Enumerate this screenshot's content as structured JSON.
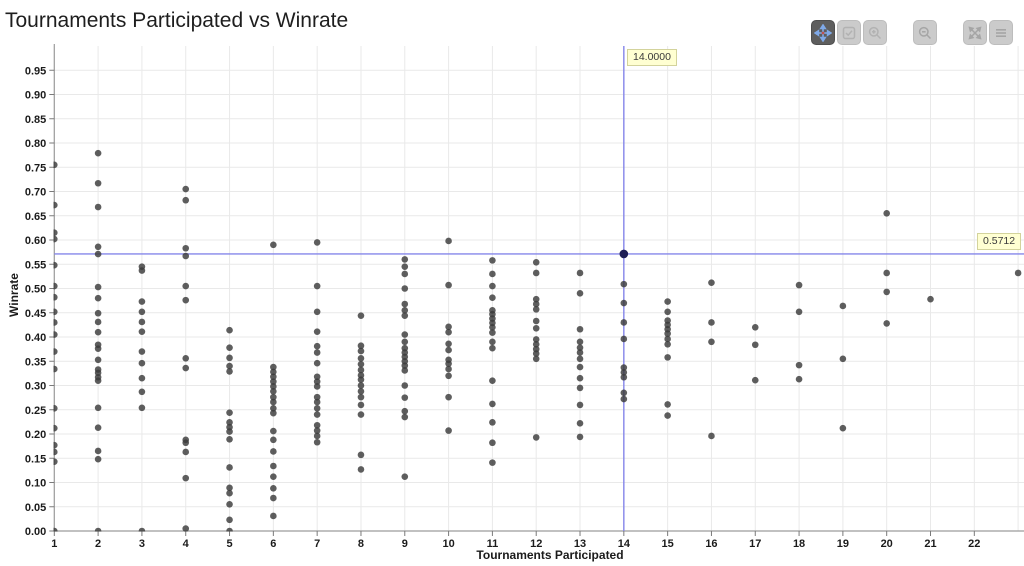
{
  "title": "Tournaments Participated vs Winrate",
  "toolbar": {
    "buttons": [
      {
        "name": "pan",
        "icon": "move-icon",
        "active": true
      },
      {
        "name": "box-select",
        "icon": "box-select-icon",
        "active": false
      },
      {
        "name": "zoom-in",
        "icon": "zoom-in-icon",
        "active": false
      },
      {
        "name": "zoom-out",
        "icon": "zoom-out-icon",
        "active": false
      },
      {
        "name": "fit-view",
        "icon": "fit-screen-icon",
        "active": false
      },
      {
        "name": "menu",
        "icon": "menu-icon",
        "active": false
      }
    ]
  },
  "chart_data": {
    "type": "scatter",
    "title": "Tournaments Participated vs Winrate",
    "xlabel": "Tournaments Participated",
    "ylabel": "Winrate",
    "xlim": [
      1,
      23.2
    ],
    "ylim": [
      0,
      1.0
    ],
    "grid": true,
    "x_tick_labels": [
      "1",
      "2",
      "3",
      "4",
      "5",
      "6",
      "7",
      "8",
      "9",
      "10",
      "11",
      "12",
      "13",
      "14",
      "15",
      "16",
      "17",
      "18",
      "19",
      "20",
      "21",
      "22"
    ],
    "y_tick_labels": [
      "0.00",
      "0.05",
      "0.10",
      "0.15",
      "0.20",
      "0.25",
      "0.30",
      "0.35",
      "0.40",
      "0.45",
      "0.50",
      "0.55",
      "0.60",
      "0.65",
      "0.70",
      "0.75",
      "0.80",
      "0.85",
      "0.90",
      "0.95"
    ],
    "point_color": "#3b3b3b",
    "colors": {
      "grid": "#e9e9e9",
      "axis": "#9c9c9c",
      "tick": "#7a7a7a",
      "crosshair": "#8586ea",
      "highlight_point": "#1d1d55",
      "label_bg": "#ffffd2"
    },
    "crosshair": {
      "x": 14,
      "y": 0.5712,
      "x_label": "14.0000",
      "y_label": "0.5712"
    },
    "highlight_point": {
      "x": 14,
      "y": 0.5712
    },
    "points": [
      [
        1,
        0.755
      ],
      [
        1,
        0.672
      ],
      [
        1,
        0.615
      ],
      [
        1,
        0.602
      ],
      [
        1,
        0.548
      ],
      [
        1,
        0.505
      ],
      [
        1,
        0.482
      ],
      [
        1,
        0.452
      ],
      [
        1,
        0.43
      ],
      [
        1,
        0.405
      ],
      [
        1,
        0.37
      ],
      [
        1,
        0.334
      ],
      [
        1,
        0.253
      ],
      [
        1,
        0.212
      ],
      [
        1,
        0.177
      ],
      [
        1,
        0.163
      ],
      [
        1,
        0.143
      ],
      [
        1,
        0.0
      ],
      [
        2,
        0.779
      ],
      [
        2,
        0.717
      ],
      [
        2,
        0.668
      ],
      [
        2,
        0.586
      ],
      [
        2,
        0.571
      ],
      [
        2,
        0.503
      ],
      [
        2,
        0.48
      ],
      [
        2,
        0.449
      ],
      [
        2,
        0.431
      ],
      [
        2,
        0.41
      ],
      [
        2,
        0.384
      ],
      [
        2,
        0.376
      ],
      [
        2,
        0.353
      ],
      [
        2,
        0.333
      ],
      [
        2,
        0.326
      ],
      [
        2,
        0.317
      ],
      [
        2,
        0.31
      ],
      [
        2,
        0.254
      ],
      [
        2,
        0.213
      ],
      [
        2,
        0.165
      ],
      [
        2,
        0.148
      ],
      [
        2,
        0.0
      ],
      [
        3,
        0.545
      ],
      [
        3,
        0.537
      ],
      [
        3,
        0.473
      ],
      [
        3,
        0.452
      ],
      [
        3,
        0.431
      ],
      [
        3,
        0.411
      ],
      [
        3,
        0.37
      ],
      [
        3,
        0.346
      ],
      [
        3,
        0.315
      ],
      [
        3,
        0.287
      ],
      [
        3,
        0.254
      ],
      [
        3,
        0.0
      ],
      [
        4,
        0.705
      ],
      [
        4,
        0.682
      ],
      [
        4,
        0.583
      ],
      [
        4,
        0.567
      ],
      [
        4,
        0.505
      ],
      [
        4,
        0.476
      ],
      [
        4,
        0.356
      ],
      [
        4,
        0.336
      ],
      [
        4,
        0.188
      ],
      [
        4,
        0.182
      ],
      [
        4,
        0.163
      ],
      [
        4,
        0.109
      ],
      [
        4,
        0.005
      ],
      [
        5,
        0.414
      ],
      [
        5,
        0.378
      ],
      [
        5,
        0.357
      ],
      [
        5,
        0.34
      ],
      [
        5,
        0.329
      ],
      [
        5,
        0.244
      ],
      [
        5,
        0.224
      ],
      [
        5,
        0.214
      ],
      [
        5,
        0.205
      ],
      [
        5,
        0.189
      ],
      [
        5,
        0.131
      ],
      [
        5,
        0.089
      ],
      [
        5,
        0.078
      ],
      [
        5,
        0.055
      ],
      [
        5,
        0.023
      ],
      [
        5,
        0.0
      ],
      [
        6,
        0.59
      ],
      [
        6,
        0.338
      ],
      [
        6,
        0.328
      ],
      [
        6,
        0.318
      ],
      [
        6,
        0.308
      ],
      [
        6,
        0.298
      ],
      [
        6,
        0.288
      ],
      [
        6,
        0.276
      ],
      [
        6,
        0.266
      ],
      [
        6,
        0.253
      ],
      [
        6,
        0.243
      ],
      [
        6,
        0.206
      ],
      [
        6,
        0.188
      ],
      [
        6,
        0.164
      ],
      [
        6,
        0.134
      ],
      [
        6,
        0.112
      ],
      [
        6,
        0.088
      ],
      [
        6,
        0.068
      ],
      [
        6,
        0.031
      ],
      [
        7,
        0.595
      ],
      [
        7,
        0.505
      ],
      [
        7,
        0.452
      ],
      [
        7,
        0.411
      ],
      [
        7,
        0.381
      ],
      [
        7,
        0.368
      ],
      [
        7,
        0.346
      ],
      [
        7,
        0.318
      ],
      [
        7,
        0.308
      ],
      [
        7,
        0.298
      ],
      [
        7,
        0.276
      ],
      [
        7,
        0.266
      ],
      [
        7,
        0.253
      ],
      [
        7,
        0.24
      ],
      [
        7,
        0.218
      ],
      [
        7,
        0.207
      ],
      [
        7,
        0.196
      ],
      [
        7,
        0.183
      ],
      [
        8,
        0.444
      ],
      [
        8,
        0.382
      ],
      [
        8,
        0.371
      ],
      [
        8,
        0.356
      ],
      [
        8,
        0.344
      ],
      [
        8,
        0.332
      ],
      [
        8,
        0.321
      ],
      [
        8,
        0.312
      ],
      [
        8,
        0.3
      ],
      [
        8,
        0.288
      ],
      [
        8,
        0.276
      ],
      [
        8,
        0.26
      ],
      [
        8,
        0.24
      ],
      [
        8,
        0.157
      ],
      [
        8,
        0.127
      ],
      [
        9,
        0.56
      ],
      [
        9,
        0.545
      ],
      [
        9,
        0.53
      ],
      [
        9,
        0.5
      ],
      [
        9,
        0.468
      ],
      [
        9,
        0.455
      ],
      [
        9,
        0.444
      ],
      [
        9,
        0.405
      ],
      [
        9,
        0.39
      ],
      [
        9,
        0.377
      ],
      [
        9,
        0.368
      ],
      [
        9,
        0.359
      ],
      [
        9,
        0.35
      ],
      [
        9,
        0.341
      ],
      [
        9,
        0.331
      ],
      [
        9,
        0.3
      ],
      [
        9,
        0.275
      ],
      [
        9,
        0.247
      ],
      [
        9,
        0.235
      ],
      [
        9,
        0.112
      ],
      [
        10,
        0.598
      ],
      [
        10,
        0.507
      ],
      [
        10,
        0.421
      ],
      [
        10,
        0.41
      ],
      [
        10,
        0.386
      ],
      [
        10,
        0.373
      ],
      [
        10,
        0.353
      ],
      [
        10,
        0.345
      ],
      [
        10,
        0.334
      ],
      [
        10,
        0.32
      ],
      [
        10,
        0.276
      ],
      [
        10,
        0.207
      ],
      [
        11,
        0.558
      ],
      [
        11,
        0.53
      ],
      [
        11,
        0.505
      ],
      [
        11,
        0.481
      ],
      [
        11,
        0.455
      ],
      [
        11,
        0.447
      ],
      [
        11,
        0.438
      ],
      [
        11,
        0.429
      ],
      [
        11,
        0.42
      ],
      [
        11,
        0.409
      ],
      [
        11,
        0.39
      ],
      [
        11,
        0.377
      ],
      [
        11,
        0.31
      ],
      [
        11,
        0.262
      ],
      [
        11,
        0.224
      ],
      [
        11,
        0.182
      ],
      [
        11,
        0.141
      ],
      [
        12,
        0.554
      ],
      [
        12,
        0.532
      ],
      [
        12,
        0.478
      ],
      [
        12,
        0.468
      ],
      [
        12,
        0.457
      ],
      [
        12,
        0.433
      ],
      [
        12,
        0.418
      ],
      [
        12,
        0.395
      ],
      [
        12,
        0.385
      ],
      [
        12,
        0.375
      ],
      [
        12,
        0.366
      ],
      [
        12,
        0.355
      ],
      [
        12,
        0.193
      ],
      [
        13,
        0.532
      ],
      [
        13,
        0.49
      ],
      [
        13,
        0.416
      ],
      [
        13,
        0.39
      ],
      [
        13,
        0.378
      ],
      [
        13,
        0.368
      ],
      [
        13,
        0.355
      ],
      [
        13,
        0.338
      ],
      [
        13,
        0.315
      ],
      [
        13,
        0.295
      ],
      [
        13,
        0.26
      ],
      [
        13,
        0.222
      ],
      [
        13,
        0.194
      ],
      [
        14,
        0.509
      ],
      [
        14,
        0.47
      ],
      [
        14,
        0.43
      ],
      [
        14,
        0.396
      ],
      [
        14,
        0.337
      ],
      [
        14,
        0.327
      ],
      [
        14,
        0.317
      ],
      [
        14,
        0.285
      ],
      [
        14,
        0.272
      ],
      [
        15,
        0.473
      ],
      [
        15,
        0.452
      ],
      [
        15,
        0.434
      ],
      [
        15,
        0.425
      ],
      [
        15,
        0.416
      ],
      [
        15,
        0.407
      ],
      [
        15,
        0.396
      ],
      [
        15,
        0.385
      ],
      [
        15,
        0.358
      ],
      [
        15,
        0.261
      ],
      [
        15,
        0.238
      ],
      [
        16,
        0.512
      ],
      [
        16,
        0.43
      ],
      [
        16,
        0.39
      ],
      [
        16,
        0.196
      ],
      [
        17,
        0.42
      ],
      [
        17,
        0.384
      ],
      [
        17,
        0.311
      ],
      [
        18,
        0.507
      ],
      [
        18,
        0.452
      ],
      [
        18,
        0.342
      ],
      [
        18,
        0.313
      ],
      [
        19,
        0.464
      ],
      [
        19,
        0.355
      ],
      [
        19,
        0.212
      ],
      [
        20,
        0.655
      ],
      [
        20,
        0.532
      ],
      [
        20,
        0.493
      ],
      [
        20,
        0.428
      ],
      [
        21,
        0.478
      ],
      [
        23,
        0.532
      ]
    ]
  }
}
